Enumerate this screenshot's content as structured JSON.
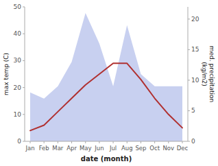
{
  "chart_data": {
    "type": "line",
    "categories": [
      "Jan",
      "Feb",
      "Mar",
      "Apr",
      "May",
      "Jun",
      "Jul",
      "Aug",
      "Sep",
      "Oct",
      "Nov",
      "Dec"
    ],
    "xlabel": "date (month)",
    "ylabel": "max temp (C)",
    "y2label": "med. precipitation\n(kg/m2)",
    "series": [
      {
        "type": "area",
        "axis": "y2",
        "color": "#c8d0f0",
        "values": [
          8,
          7,
          9,
          13,
          21,
          16,
          9,
          19,
          11,
          9,
          9,
          9
        ]
      },
      {
        "type": "line",
        "color": "#b03030",
        "values": [
          4,
          6,
          11,
          16,
          21,
          25,
          29,
          29,
          23,
          16,
          10,
          5
        ]
      }
    ],
    "ylim": [
      0,
      50
    ],
    "yticks": [
      0,
      10,
      20,
      30,
      40,
      50
    ],
    "y2lim": [
      0,
      22
    ],
    "y2ticks": [
      0,
      5,
      10,
      15,
      20
    ],
    "grid": false
  }
}
